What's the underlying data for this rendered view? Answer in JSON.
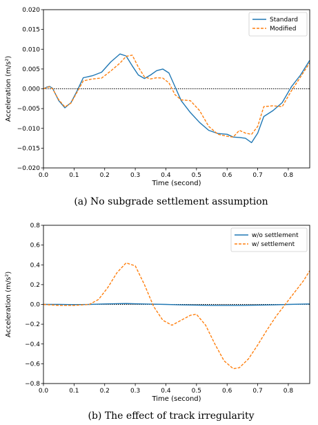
{
  "colors": {
    "standard": "#1f77b4",
    "modified": "#ff7f0e",
    "zero_line": "#000000"
  },
  "chart_data": [
    {
      "type": "line",
      "caption": "(a) No subgrade settlement assumption",
      "xlabel": "Time (second)",
      "ylabel": "Acceleration (m/s²)",
      "xlim": [
        0.0,
        0.87
      ],
      "ylim": [
        -0.02,
        0.02
      ],
      "xticks": [
        "0.0",
        "0.1",
        "0.2",
        "0.3",
        "0.4",
        "0.5",
        "0.6",
        "0.7",
        "0.8"
      ],
      "yticks": [
        "0.020",
        "0.015",
        "0.010",
        "0.005",
        "0.000",
        "−0.005",
        "−0.010",
        "−0.015",
        "−0.020"
      ],
      "legend_position": "top-right",
      "zero_reference_line": true,
      "series": [
        {
          "name": "Standard",
          "style": "solid",
          "x": [
            0,
            0.01,
            0.02,
            0.03,
            0.05,
            0.07,
            0.09,
            0.11,
            0.13,
            0.16,
            0.19,
            0.22,
            0.25,
            0.27,
            0.29,
            0.31,
            0.33,
            0.35,
            0.37,
            0.39,
            0.41,
            0.43,
            0.45,
            0.48,
            0.51,
            0.54,
            0.57,
            0.6,
            0.62,
            0.64,
            0.66,
            0.68,
            0.7,
            0.72,
            0.75,
            0.78,
            0.81,
            0.84,
            0.87
          ],
          "y": [
            0,
            0.0004,
            0.0006,
            0.0001,
            -0.003,
            -0.0048,
            -0.0035,
            -0.0005,
            0.0028,
            0.0033,
            0.0042,
            0.0068,
            0.0088,
            0.0083,
            0.0058,
            0.0035,
            0.0026,
            0.0035,
            0.0046,
            0.005,
            0.004,
            0.0005,
            -0.003,
            -0.006,
            -0.0085,
            -0.0105,
            -0.0113,
            -0.0115,
            -0.0122,
            -0.0123,
            -0.0125,
            -0.0136,
            -0.0112,
            -0.007,
            -0.0055,
            -0.0035,
            0.0005,
            0.0035,
            0.0072
          ]
        },
        {
          "name": "Modified",
          "style": "dashed",
          "x": [
            0,
            0.01,
            0.02,
            0.03,
            0.05,
            0.07,
            0.09,
            0.11,
            0.13,
            0.16,
            0.19,
            0.22,
            0.25,
            0.27,
            0.29,
            0.31,
            0.33,
            0.35,
            0.37,
            0.39,
            0.41,
            0.43,
            0.45,
            0.48,
            0.51,
            0.54,
            0.57,
            0.6,
            0.62,
            0.64,
            0.66,
            0.68,
            0.7,
            0.72,
            0.75,
            0.78,
            0.81,
            0.84,
            0.87
          ],
          "y": [
            0,
            0.0003,
            0.0005,
            0.0,
            -0.0028,
            -0.0046,
            -0.0036,
            -0.0008,
            0.002,
            0.0025,
            0.0027,
            0.0045,
            0.0065,
            0.0082,
            0.0085,
            0.0055,
            0.003,
            0.0025,
            0.0028,
            0.0027,
            0.0015,
            -0.0015,
            -0.0028,
            -0.003,
            -0.0055,
            -0.0095,
            -0.0115,
            -0.012,
            -0.0122,
            -0.0105,
            -0.0112,
            -0.0115,
            -0.0095,
            -0.0045,
            -0.0043,
            -0.0045,
            -0.0005,
            0.003,
            0.0066
          ]
        }
      ]
    },
    {
      "type": "line",
      "caption": "(b) The effect of track irregularity",
      "xlabel": "Time (second)",
      "ylabel": "Acceleration (m/s²)",
      "xlim": [
        0.0,
        0.87
      ],
      "ylim": [
        -0.8,
        0.8
      ],
      "xticks": [
        "0.0",
        "0.1",
        "0.2",
        "0.3",
        "0.4",
        "0.5",
        "0.6",
        "0.7",
        "0.8"
      ],
      "yticks": [
        "0.8",
        "0.6",
        "0.4",
        "0.2",
        "0.0",
        "−0.2",
        "−0.4",
        "−0.6",
        "−0.8"
      ],
      "legend_position": "top-right",
      "zero_reference_line": true,
      "series": [
        {
          "name": "w/o settlement",
          "style": "solid",
          "x": [
            0,
            0.05,
            0.1,
            0.15,
            0.2,
            0.27,
            0.3,
            0.35,
            0.4,
            0.45,
            0.5,
            0.55,
            0.6,
            0.65,
            0.7,
            0.75,
            0.8,
            0.87
          ],
          "y": [
            0,
            0.0,
            -0.002,
            0.0,
            0.005,
            0.009,
            0.006,
            0.003,
            0.0,
            -0.005,
            -0.008,
            -0.01,
            -0.01,
            -0.01,
            -0.008,
            -0.005,
            0.0,
            0.005
          ]
        },
        {
          "name": "w/ settlement",
          "style": "dashed",
          "x": [
            0,
            0.05,
            0.1,
            0.15,
            0.18,
            0.21,
            0.24,
            0.27,
            0.3,
            0.33,
            0.36,
            0.39,
            0.42,
            0.45,
            0.48,
            0.5,
            0.53,
            0.56,
            0.59,
            0.62,
            0.64,
            0.67,
            0.7,
            0.73,
            0.76,
            0.79,
            0.82,
            0.85,
            0.87
          ],
          "y": [
            0,
            -0.01,
            -0.01,
            0.0,
            0.05,
            0.17,
            0.32,
            0.42,
            0.39,
            0.2,
            -0.02,
            -0.16,
            -0.21,
            -0.16,
            -0.11,
            -0.1,
            -0.21,
            -0.4,
            -0.57,
            -0.65,
            -0.64,
            -0.55,
            -0.41,
            -0.26,
            -0.12,
            0.0,
            0.12,
            0.24,
            0.34
          ]
        }
      ]
    }
  ]
}
